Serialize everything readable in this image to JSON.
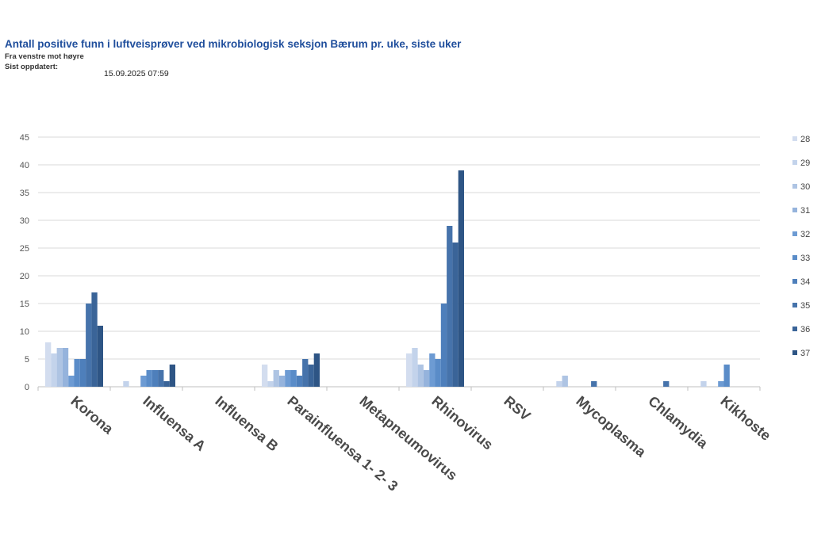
{
  "header": {
    "title": "Antall positive funn i luftveisprøver ved mikrobiologisk seksjon Bærum pr. uke, siste uker",
    "subtitle": "Fra venstre mot høyre",
    "updated_label": "Sist oppdatert:",
    "updated_value": "15.09.2025 07:59"
  },
  "chart_data": {
    "type": "bar",
    "title": "",
    "xlabel": "",
    "ylabel": "",
    "ylim": [
      0,
      45
    ],
    "yticks": [
      0,
      5,
      10,
      15,
      20,
      25,
      30,
      35,
      40,
      45
    ],
    "grid": true,
    "legend_position": "right",
    "categories": [
      "Korona",
      "Influensa A",
      "Influensa B",
      "Parainfluensa 1- 2- 3",
      "Metapneumovirus",
      "Rhinovirus",
      "RSV",
      "Mycoplasma",
      "Chlamydia",
      "Kikhoste"
    ],
    "series": [
      {
        "name": "28",
        "color": "#d3ddef",
        "values": [
          8,
          0,
          0,
          4,
          0,
          6,
          0,
          0,
          0,
          0
        ]
      },
      {
        "name": "29",
        "color": "#c3d3eb",
        "values": [
          6,
          1,
          0,
          1,
          0,
          7,
          0,
          1,
          0,
          1
        ]
      },
      {
        "name": "30",
        "color": "#aec4e3",
        "values": [
          7,
          0,
          0,
          3,
          0,
          4,
          0,
          2,
          0,
          0
        ]
      },
      {
        "name": "31",
        "color": "#95b3dc",
        "values": [
          7,
          0,
          0,
          2,
          0,
          3,
          0,
          0,
          0,
          0
        ]
      },
      {
        "name": "32",
        "color": "#6d9bd3",
        "values": [
          2,
          2,
          0,
          3,
          0,
          6,
          0,
          0,
          0,
          1
        ]
      },
      {
        "name": "33",
        "color": "#5a8cc8",
        "values": [
          5,
          3,
          0,
          3,
          0,
          5,
          0,
          0,
          0,
          4
        ]
      },
      {
        "name": "34",
        "color": "#4e7fbb",
        "values": [
          5,
          3,
          0,
          2,
          0,
          15,
          0,
          0,
          0,
          0
        ]
      },
      {
        "name": "35",
        "color": "#4673ab",
        "values": [
          15,
          3,
          0,
          5,
          0,
          29,
          0,
          1,
          1,
          0
        ]
      },
      {
        "name": "36",
        "color": "#3a6498",
        "values": [
          17,
          1,
          0,
          4,
          0,
          26,
          0,
          0,
          0,
          0
        ]
      },
      {
        "name": "37",
        "color": "#2e5585",
        "values": [
          11,
          4,
          0,
          6,
          0,
          39,
          0,
          0,
          0,
          0
        ]
      }
    ]
  }
}
